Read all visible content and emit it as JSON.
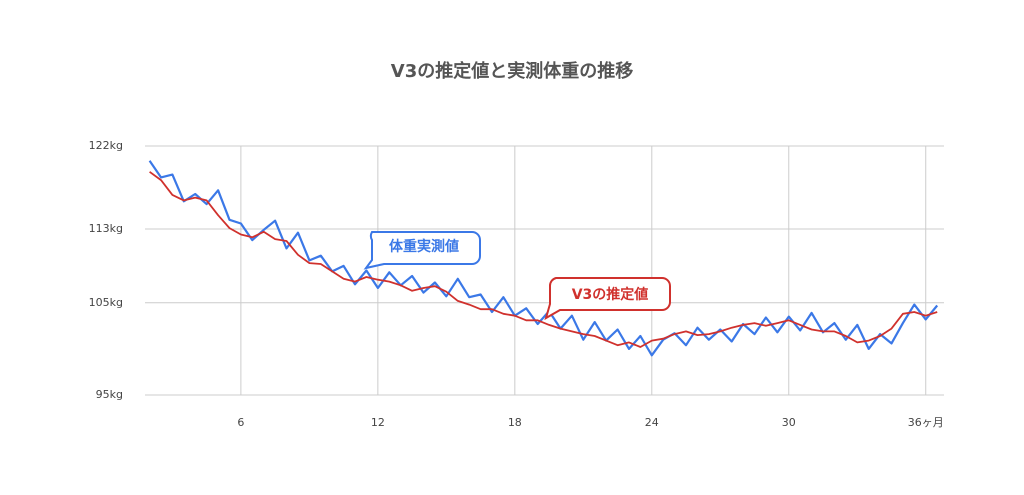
{
  "chart_data": {
    "type": "line",
    "title": "V3の推定値と実測体重の推移",
    "x": [
      2,
      2.5,
      3,
      3.5,
      4,
      4.5,
      5,
      5.5,
      6,
      6.5,
      7,
      7.5,
      8,
      8.5,
      9,
      9.5,
      10,
      10.5,
      11,
      11.5,
      12,
      12.5,
      13,
      13.5,
      14,
      14.5,
      15,
      15.5,
      16,
      16.5,
      17,
      17.5,
      18,
      18.5,
      19,
      19.5,
      20,
      20.5,
      21,
      21.5,
      22,
      22.5,
      23,
      23.5,
      24,
      24.5,
      25,
      25.5,
      26,
      26.5,
      27,
      27.5,
      28,
      28.5,
      29,
      29.5,
      30,
      30.5,
      31,
      31.5,
      32,
      32.5,
      33,
      33.5,
      34,
      34.5,
      35,
      35.5,
      36,
      36.5
    ],
    "series": [
      {
        "name": "体重実測値",
        "color": "#3b78e7",
        "values": [
          120.4,
          118.6,
          118.9,
          116.0,
          116.8,
          115.7,
          117.2,
          114.0,
          113.6,
          111.8,
          112.9,
          113.9,
          110.9,
          112.6,
          109.6,
          110.1,
          108.4,
          109.0,
          107.0,
          108.5,
          106.6,
          108.3,
          106.9,
          107.9,
          106.1,
          107.2,
          105.7,
          107.6,
          105.6,
          105.9,
          104.0,
          105.6,
          103.6,
          104.4,
          102.7,
          104.1,
          102.2,
          103.6,
          101.0,
          102.9,
          100.9,
          102.1,
          100.0,
          101.4,
          99.3,
          101.0,
          101.7,
          100.4,
          102.3,
          101.0,
          102.1,
          100.8,
          102.7,
          101.6,
          103.4,
          101.8,
          103.5,
          102.0,
          103.9,
          101.8,
          102.8,
          101.0,
          102.6,
          100.0,
          101.6,
          100.6,
          102.8,
          104.8,
          103.2,
          104.7
        ]
      },
      {
        "name": "V3の推定値",
        "color": "#d0312d",
        "values": [
          119.2,
          118.3,
          116.7,
          116.1,
          116.4,
          116.1,
          114.5,
          113.1,
          112.4,
          112.1,
          112.7,
          111.9,
          111.7,
          110.2,
          109.3,
          109.2,
          108.4,
          107.6,
          107.3,
          107.8,
          107.5,
          107.3,
          106.9,
          106.3,
          106.6,
          106.8,
          106.2,
          105.2,
          104.8,
          104.3,
          104.3,
          103.8,
          103.6,
          103.1,
          103.1,
          102.6,
          102.2,
          101.9,
          101.6,
          101.4,
          100.9,
          100.4,
          100.7,
          100.2,
          100.9,
          101.1,
          101.6,
          101.9,
          101.5,
          101.6,
          101.9,
          102.3,
          102.6,
          102.8,
          102.5,
          102.8,
          103.1,
          102.6,
          102.1,
          101.9,
          101.9,
          101.4,
          100.7,
          100.9,
          101.4,
          102.2,
          103.8,
          104.0,
          103.6,
          104.0
        ]
      }
    ],
    "xlim": [
      1.8,
      36.8
    ],
    "ylim": [
      95,
      122
    ],
    "xticks": [
      6,
      12,
      18,
      24,
      30,
      {
        "value": 36,
        "label": "36ヶ月"
      }
    ],
    "yticks": [
      {
        "value": 95,
        "label": "95kg"
      },
      {
        "value": 105,
        "label": "105kg"
      },
      {
        "value": 113,
        "label": "113kg"
      },
      {
        "value": 122,
        "label": "122kg"
      }
    ],
    "grid": true
  }
}
